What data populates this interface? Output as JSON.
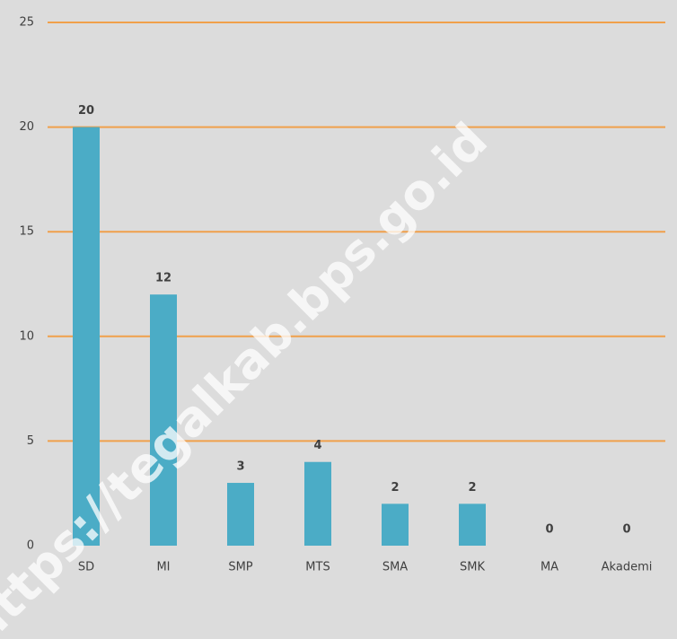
{
  "chart_data": {
    "type": "bar",
    "categories": [
      "SD",
      "MI",
      "SMP",
      "MTS",
      "SMA",
      "SMK",
      "MA",
      "Akademi"
    ],
    "values": [
      20,
      12,
      3,
      4,
      2,
      2,
      0,
      0
    ],
    "color": "#4bacc6",
    "ylim": [
      0,
      25
    ],
    "yticks": [
      0,
      5,
      10,
      15,
      20,
      25
    ],
    "grid": true,
    "grid_color": "#f0a04b",
    "watermark": "https://tegalkab.bps.go.id"
  }
}
